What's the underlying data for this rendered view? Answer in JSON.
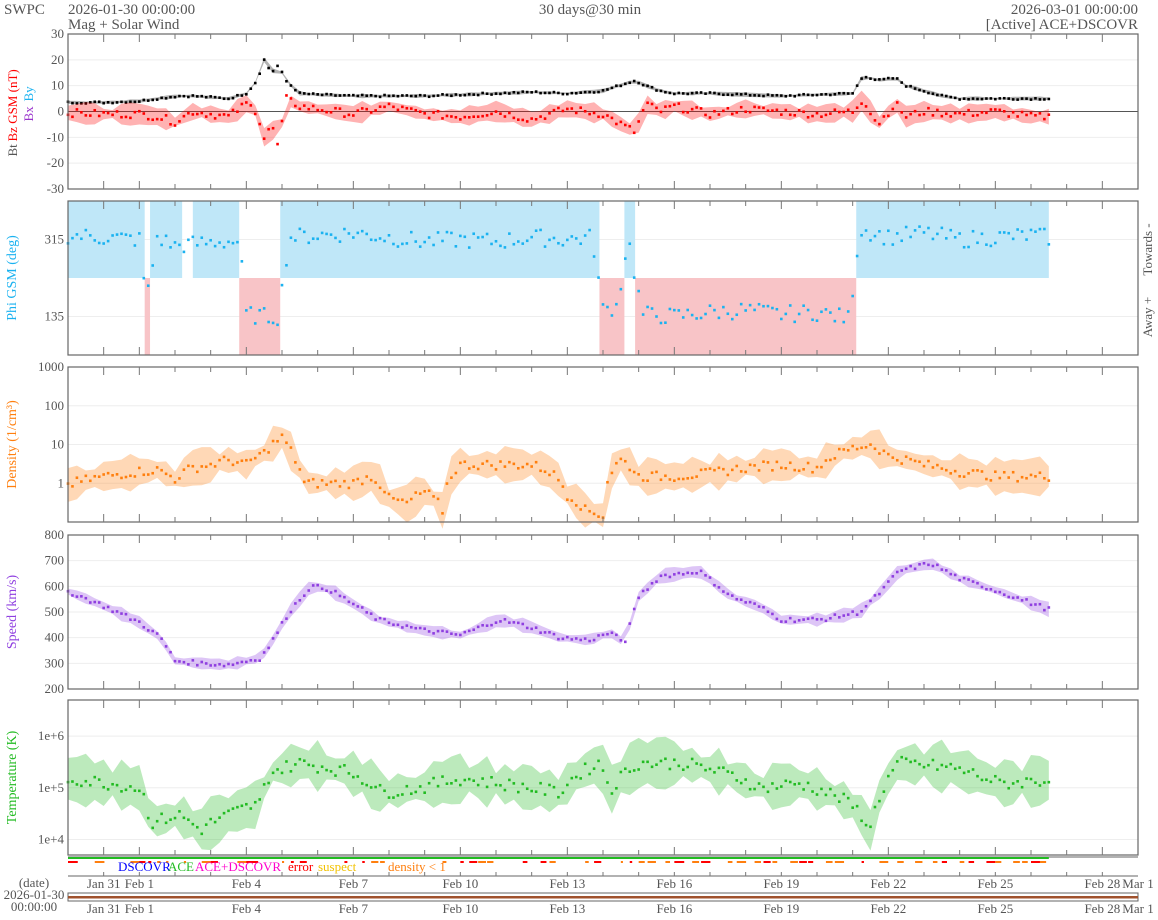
{
  "header": {
    "org": "SWPC",
    "start_time": "2026-01-30 00:00:00",
    "subtitle": "Mag + Solar Wind",
    "span": "30 days@30 min",
    "end_time": "2026-03-01 00:00:00",
    "source_status": "[Active] ACE+DSCOVR"
  },
  "footer": {
    "date_label": "(date)",
    "date_value": "2026-01-30",
    "time_value": "00:00:00"
  },
  "legend": {
    "dscovr": "DSCOVR",
    "ace": "ACE",
    "ace_dscovr": "ACE+DSCOVR",
    "error": "error",
    "suspect": "suspect",
    "density_low": "density < 1"
  },
  "colors": {
    "bt": "#000000",
    "bz": "#ff0000",
    "bx": "#9933cc",
    "by": "#1ab2f0",
    "phi": "#1ab2f0",
    "towards": "#bfe7f8",
    "away": "#f8c4c7",
    "density": "#ff7f0e",
    "speed": "#8f3fe0",
    "temperature": "#22bb22",
    "dscovr": "#0000ff",
    "ace": "#22bb22",
    "ace_dscovr": "#ff00cc",
    "error": "#ff0000",
    "suspect": "#f2c200",
    "density_low": "#ff7f0e"
  },
  "chart_data": [
    {
      "type": "line",
      "id": "mag",
      "ylabel_parts": [
        "Bt",
        "Bz GSM (nT)",
        "Bx",
        "By"
      ],
      "ylim": [
        -30,
        30
      ],
      "yticks": [
        30,
        20,
        10,
        0,
        -10,
        -20,
        -30
      ],
      "ytick_labels": [
        "30",
        "20",
        "10",
        "0",
        "-10",
        "-20",
        "-30"
      ],
      "series": [
        {
          "name": "Bt",
          "points": [
            [
              0,
              3.5
            ],
            [
              1,
              3.5
            ],
            [
              2,
              4
            ],
            [
              2.5,
              5
            ],
            [
              3.1,
              6
            ],
            [
              3.5,
              6
            ],
            [
              4,
              5.5
            ],
            [
              4.5,
              5
            ],
            [
              5,
              7
            ],
            [
              5.3,
              12
            ],
            [
              5.5,
              20
            ],
            [
              5.7,
              15
            ],
            [
              5.9,
              18
            ],
            [
              6.1,
              12
            ],
            [
              6.5,
              7
            ],
            [
              7,
              6.5
            ],
            [
              8,
              6
            ],
            [
              9,
              6
            ],
            [
              10,
              6
            ],
            [
              11,
              6.5
            ],
            [
              12,
              7
            ],
            [
              13,
              7.5
            ],
            [
              14,
              7
            ],
            [
              15,
              8
            ],
            [
              15.9,
              12
            ],
            [
              16.2,
              10
            ],
            [
              16.6,
              8
            ],
            [
              17,
              7
            ],
            [
              18,
              7
            ],
            [
              19,
              6.5
            ],
            [
              20,
              6
            ],
            [
              21,
              6.5
            ],
            [
              22,
              7
            ],
            [
              22.3,
              14
            ],
            [
              22.7,
              12
            ],
            [
              23.2,
              13
            ],
            [
              23.5,
              10
            ],
            [
              24,
              8
            ],
            [
              24.5,
              6
            ],
            [
              25,
              5
            ],
            [
              26,
              5
            ],
            [
              27,
              5
            ],
            [
              27.5,
              5
            ]
          ]
        },
        {
          "name": "Bz GSM",
          "points": [
            [
              0,
              -0.5
            ],
            [
              1,
              -1
            ],
            [
              2,
              -1
            ],
            [
              2.5,
              -2
            ],
            [
              3,
              -4
            ],
            [
              3.5,
              0
            ],
            [
              4,
              -1
            ],
            [
              4.5,
              -2
            ],
            [
              5,
              3
            ],
            [
              5.3,
              0
            ],
            [
              5.5,
              -10
            ],
            [
              5.7,
              -5
            ],
            [
              5.9,
              -14
            ],
            [
              6.1,
              5
            ],
            [
              6.5,
              2
            ],
            [
              7,
              1
            ],
            [
              8,
              -1
            ],
            [
              9,
              2
            ],
            [
              10,
              -1
            ],
            [
              11,
              -2
            ],
            [
              12,
              0
            ],
            [
              13,
              -3
            ],
            [
              14,
              1
            ],
            [
              15,
              -1
            ],
            [
              15.9,
              -8
            ],
            [
              16.2,
              3
            ],
            [
              16.6,
              0
            ],
            [
              17,
              2
            ],
            [
              18,
              -1
            ],
            [
              19,
              1
            ],
            [
              20,
              0
            ],
            [
              21,
              -1
            ],
            [
              22,
              0
            ],
            [
              22.3,
              5
            ],
            [
              22.7,
              -5
            ],
            [
              23.2,
              3
            ],
            [
              23.5,
              -2
            ],
            [
              24,
              0
            ],
            [
              25,
              -1
            ],
            [
              26,
              0
            ],
            [
              27,
              -2
            ],
            [
              27.5,
              -2
            ]
          ]
        }
      ]
    },
    {
      "type": "scatter",
      "id": "phi",
      "ylabel": "Phi GSM (deg)",
      "ylim": [
        45,
        405
      ],
      "yticks": [
        315,
        135
      ],
      "ytick_labels": [
        "315",
        "135"
      ],
      "right_labels": [
        "Towards -",
        "Away +"
      ],
      "sectors": [
        [
          0,
          2.15,
          "towards"
        ],
        [
          2.15,
          2.3,
          "away"
        ],
        [
          2.3,
          3.2,
          "towards"
        ],
        [
          3.5,
          4.8,
          "towards"
        ],
        [
          4.8,
          5.95,
          "away"
        ],
        [
          5.95,
          14.9,
          "towards"
        ],
        [
          14.9,
          15.6,
          "away"
        ],
        [
          15.6,
          15.9,
          "towards"
        ],
        [
          15.9,
          22.1,
          "away"
        ],
        [
          22.1,
          27.5,
          "towards"
        ]
      ],
      "series": [
        {
          "name": "Phi GSM",
          "points": [
            [
              0,
              325
            ],
            [
              1,
              320
            ],
            [
              2,
              315
            ],
            [
              2.2,
              170
            ],
            [
              2.5,
              320
            ],
            [
              3,
              300
            ],
            [
              3.6,
              305
            ],
            [
              4.2,
              310
            ],
            [
              4.8,
              310
            ],
            [
              5,
              140
            ],
            [
              5.5,
              135
            ],
            [
              5.9,
              135
            ],
            [
              6.2,
              320
            ],
            [
              7,
              325
            ],
            [
              8,
              330
            ],
            [
              9,
              320
            ],
            [
              10,
              310
            ],
            [
              11,
              315
            ],
            [
              12,
              310
            ],
            [
              13,
              320
            ],
            [
              14,
              315
            ],
            [
              14.7,
              320
            ],
            [
              15,
              150
            ],
            [
              15.4,
              160
            ],
            [
              15.7,
              320
            ],
            [
              16.1,
              140
            ],
            [
              17,
              135
            ],
            [
              18,
              145
            ],
            [
              19,
              150
            ],
            [
              20,
              140
            ],
            [
              21,
              145
            ],
            [
              21.9,
              130
            ],
            [
              22.2,
              340
            ],
            [
              23,
              320
            ],
            [
              24,
              330
            ],
            [
              25,
              315
            ],
            [
              26,
              320
            ],
            [
              27,
              325
            ],
            [
              27.5,
              320
            ]
          ]
        }
      ]
    },
    {
      "type": "line",
      "id": "density",
      "scale": "log",
      "ylabel": "Density (1/cm³)",
      "ylim": [
        0.1,
        1000
      ],
      "yticks": [
        1000,
        100,
        10,
        1
      ],
      "ytick_labels": [
        "1000",
        "100",
        "10",
        "1"
      ],
      "series": [
        {
          "name": "Density",
          "points": [
            [
              0,
              0.9
            ],
            [
              0.5,
              1.2
            ],
            [
              1,
              1.5
            ],
            [
              2,
              2
            ],
            [
              2.5,
              2.2
            ],
            [
              3,
              1.3
            ],
            [
              3.5,
              2.5
            ],
            [
              4,
              3
            ],
            [
              4.5,
              4
            ],
            [
              5,
              3
            ],
            [
              5.5,
              6
            ],
            [
              6,
              15
            ],
            [
              6.3,
              5
            ],
            [
              6.6,
              1
            ],
            [
              7,
              1
            ],
            [
              8,
              1
            ],
            [
              8.5,
              1.5
            ],
            [
              9,
              0.4
            ],
            [
              9.5,
              0.3
            ],
            [
              10,
              0.6
            ],
            [
              10.5,
              0.2
            ],
            [
              11,
              3
            ],
            [
              12,
              3
            ],
            [
              13,
              3
            ],
            [
              13.5,
              2
            ],
            [
              14,
              0.5
            ],
            [
              14.5,
              0.2
            ],
            [
              15,
              0.15
            ],
            [
              15.5,
              4
            ],
            [
              16,
              1.5
            ],
            [
              17,
              1.5
            ],
            [
              18,
              1.8
            ],
            [
              19,
              2.5
            ],
            [
              20,
              3
            ],
            [
              21,
              2.5
            ],
            [
              22,
              8
            ],
            [
              22.5,
              10
            ],
            [
              23,
              5
            ],
            [
              24,
              3
            ],
            [
              25,
              2
            ],
            [
              26,
              1.5
            ],
            [
              27,
              1.5
            ],
            [
              27.5,
              1.5
            ]
          ]
        }
      ]
    },
    {
      "type": "line",
      "id": "speed",
      "ylabel": "Speed (km/s)",
      "ylim": [
        200,
        800
      ],
      "yticks": [
        800,
        700,
        600,
        500,
        400,
        300,
        200
      ],
      "ytick_labels": [
        "800",
        "700",
        "600",
        "500",
        "400",
        "300",
        "200"
      ],
      "series": [
        {
          "name": "Speed",
          "points": [
            [
              0,
              580
            ],
            [
              0.9,
              530
            ],
            [
              2,
              460
            ],
            [
              2.6,
              400
            ],
            [
              3,
              310
            ],
            [
              3.7,
              300
            ],
            [
              4.5,
              295
            ],
            [
              5.4,
              320
            ],
            [
              5.7,
              380
            ],
            [
              6.2,
              500
            ],
            [
              6.8,
              600
            ],
            [
              7.3,
              590
            ],
            [
              7.9,
              540
            ],
            [
              8.7,
              470
            ],
            [
              9.9,
              430
            ],
            [
              11,
              410
            ],
            [
              12.1,
              470
            ],
            [
              13,
              440
            ],
            [
              13.8,
              400
            ],
            [
              14.6,
              390
            ],
            [
              15.2,
              420
            ],
            [
              15.6,
              380
            ],
            [
              16,
              560
            ],
            [
              16.6,
              640
            ],
            [
              17.2,
              650
            ],
            [
              17.7,
              660
            ],
            [
              18.6,
              560
            ],
            [
              19.4,
              520
            ],
            [
              20,
              470
            ],
            [
              21.1,
              470
            ],
            [
              22.2,
              500
            ],
            [
              22.8,
              580
            ],
            [
              23.3,
              660
            ],
            [
              24.2,
              690
            ],
            [
              25,
              630
            ],
            [
              26.1,
              580
            ],
            [
              27.5,
              510
            ]
          ]
        }
      ]
    },
    {
      "type": "line",
      "id": "temperature",
      "scale": "log",
      "ylabel": "Temperature (K)",
      "ylim": [
        5000,
        5000000
      ],
      "yticks": [
        1000000,
        100000,
        10000
      ],
      "ytick_labels": [
        "1e+6",
        "1e+5",
        "1e+4"
      ],
      "series": [
        {
          "name": "Temperature",
          "points": [
            [
              0,
              150000
            ],
            [
              2,
              100000
            ],
            [
              2.3,
              20000
            ],
            [
              3.1,
              30000
            ],
            [
              3.7,
              15000
            ],
            [
              4.5,
              30000
            ],
            [
              5.4,
              50000
            ],
            [
              5.7,
              200000
            ],
            [
              6.5,
              300000
            ],
            [
              7.9,
              200000
            ],
            [
              8.8,
              80000
            ],
            [
              9.9,
              100000
            ],
            [
              11,
              150000
            ],
            [
              12.1,
              120000
            ],
            [
              13.8,
              80000
            ],
            [
              14.9,
              300000
            ],
            [
              15.2,
              80000
            ],
            [
              16,
              300000
            ],
            [
              17.2,
              300000
            ],
            [
              18.3,
              200000
            ],
            [
              19.4,
              100000
            ],
            [
              20.5,
              120000
            ],
            [
              21.9,
              50000
            ],
            [
              22.5,
              15000
            ],
            [
              22.9,
              100000
            ],
            [
              23.3,
              300000
            ],
            [
              24.7,
              250000
            ],
            [
              26.1,
              120000
            ],
            [
              27.5,
              140000
            ]
          ]
        }
      ]
    }
  ],
  "xaxis": {
    "tick_labels": [
      "Jan 31",
      "Feb 1",
      "Feb 4",
      "Feb 7",
      "Feb 10",
      "Feb 13",
      "Feb 16",
      "Feb 19",
      "Feb 22",
      "Feb 25",
      "Feb 28",
      "Mar 1"
    ],
    "tick_days": [
      1,
      2,
      5,
      8,
      11,
      14,
      17,
      20,
      23,
      26,
      29,
      30
    ],
    "range_days": [
      0,
      30
    ]
  }
}
